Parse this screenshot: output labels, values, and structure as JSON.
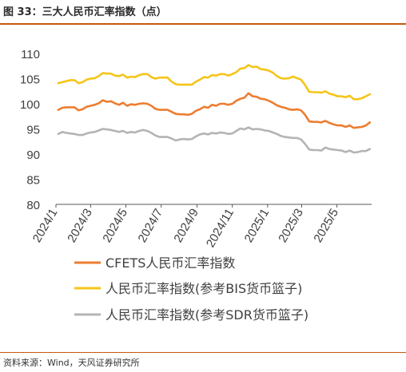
{
  "figure": {
    "title": "图 33：三大人民币汇率指数（点）",
    "source": "资料来源：Wind，天风证券研究所"
  },
  "chart_data": {
    "type": "line",
    "ylim": [
      80,
      110
    ],
    "yticks": [
      80,
      85,
      90,
      95,
      100,
      105,
      110
    ],
    "xlim": [
      "2024-01-01",
      "2025-06-30"
    ],
    "xticks": [
      {
        "date": "2024-01-01",
        "label": "2024/1"
      },
      {
        "date": "2024-03-01",
        "label": "2024/3"
      },
      {
        "date": "2024-05-01",
        "label": "2024/5"
      },
      {
        "date": "2024-07-01",
        "label": "2024/7"
      },
      {
        "date": "2024-09-01",
        "label": "2024/9"
      },
      {
        "date": "2024-11-01",
        "label": "2024/11"
      },
      {
        "date": "2025-01-01",
        "label": "2025/1"
      },
      {
        "date": "2025-03-01",
        "label": "2025/3"
      },
      {
        "date": "2025-05-01",
        "label": "2025/5"
      }
    ],
    "grid": false,
    "legend_position": "bottom",
    "series": [
      {
        "name": "CFETS人民币汇率指数",
        "color": "#ed7d31",
        "points": [
          [
            "2024-01-05",
            98.8
          ],
          [
            "2024-01-12",
            99.2
          ],
          [
            "2024-01-19",
            99.3
          ],
          [
            "2024-01-26",
            99.3
          ],
          [
            "2024-02-02",
            99.3
          ],
          [
            "2024-02-09",
            98.7
          ],
          [
            "2024-02-16",
            98.9
          ],
          [
            "2024-02-23",
            99.4
          ],
          [
            "2024-03-01",
            99.6
          ],
          [
            "2024-03-08",
            99.8
          ],
          [
            "2024-03-15",
            100.1
          ],
          [
            "2024-03-22",
            100.7
          ],
          [
            "2024-03-29",
            100.4
          ],
          [
            "2024-04-05",
            100.5
          ],
          [
            "2024-04-12",
            100.1
          ],
          [
            "2024-04-19",
            99.8
          ],
          [
            "2024-04-26",
            100.2
          ],
          [
            "2024-05-03",
            99.6
          ],
          [
            "2024-05-10",
            99.9
          ],
          [
            "2024-05-17",
            99.8
          ],
          [
            "2024-05-24",
            100.0
          ],
          [
            "2024-05-31",
            100.1
          ],
          [
            "2024-06-07",
            100.0
          ],
          [
            "2024-06-14",
            99.6
          ],
          [
            "2024-06-21",
            99.0
          ],
          [
            "2024-06-28",
            98.8
          ],
          [
            "2024-07-05",
            98.8
          ],
          [
            "2024-07-12",
            98.8
          ],
          [
            "2024-07-19",
            98.4
          ],
          [
            "2024-07-26",
            98.0
          ],
          [
            "2024-08-02",
            97.9
          ],
          [
            "2024-08-09",
            97.9
          ],
          [
            "2024-08-16",
            97.8
          ],
          [
            "2024-08-23",
            98.0
          ],
          [
            "2024-08-30",
            98.6
          ],
          [
            "2024-09-06",
            98.9
          ],
          [
            "2024-09-13",
            99.4
          ],
          [
            "2024-09-20",
            99.2
          ],
          [
            "2024-09-27",
            99.8
          ],
          [
            "2024-10-04",
            99.6
          ],
          [
            "2024-10-11",
            100.0
          ],
          [
            "2024-10-18",
            100.0
          ],
          [
            "2024-10-25",
            99.8
          ],
          [
            "2024-11-01",
            100.0
          ],
          [
            "2024-11-08",
            100.6
          ],
          [
            "2024-11-15",
            101.0
          ],
          [
            "2024-11-22",
            101.2
          ],
          [
            "2024-11-29",
            102.1
          ],
          [
            "2024-12-06",
            101.5
          ],
          [
            "2024-12-13",
            101.4
          ],
          [
            "2024-12-20",
            101.0
          ],
          [
            "2024-12-27",
            100.9
          ],
          [
            "2025-01-03",
            100.6
          ],
          [
            "2025-01-10",
            100.2
          ],
          [
            "2025-01-17",
            99.7
          ],
          [
            "2025-01-24",
            99.4
          ],
          [
            "2025-01-31",
            99.2
          ],
          [
            "2025-02-07",
            98.9
          ],
          [
            "2025-02-14",
            98.8
          ],
          [
            "2025-02-21",
            98.9
          ],
          [
            "2025-02-28",
            98.7
          ],
          [
            "2025-03-07",
            97.8
          ],
          [
            "2025-03-14",
            96.5
          ],
          [
            "2025-03-21",
            96.4
          ],
          [
            "2025-03-28",
            96.4
          ],
          [
            "2025-04-04",
            96.3
          ],
          [
            "2025-04-11",
            96.6
          ],
          [
            "2025-04-18",
            96.2
          ],
          [
            "2025-04-25",
            95.9
          ],
          [
            "2025-05-02",
            95.7
          ],
          [
            "2025-05-09",
            95.7
          ],
          [
            "2025-05-16",
            95.4
          ],
          [
            "2025-05-23",
            95.7
          ],
          [
            "2025-05-30",
            95.2
          ],
          [
            "2025-06-06",
            95.3
          ],
          [
            "2025-06-13",
            95.4
          ],
          [
            "2025-06-20",
            95.7
          ],
          [
            "2025-06-27",
            96.3
          ]
        ]
      },
      {
        "name": "人民币汇率指数(参考BIS货币篮子)",
        "color": "#f5c518",
        "points": [
          [
            "2024-01-05",
            104.1
          ],
          [
            "2024-01-12",
            104.3
          ],
          [
            "2024-01-19",
            104.5
          ],
          [
            "2024-01-26",
            104.7
          ],
          [
            "2024-02-02",
            104.7
          ],
          [
            "2024-02-09",
            104.1
          ],
          [
            "2024-02-16",
            104.3
          ],
          [
            "2024-02-23",
            104.8
          ],
          [
            "2024-03-01",
            105.0
          ],
          [
            "2024-03-08",
            105.1
          ],
          [
            "2024-03-15",
            105.5
          ],
          [
            "2024-03-22",
            106.1
          ],
          [
            "2024-03-29",
            106.0
          ],
          [
            "2024-04-05",
            106.0
          ],
          [
            "2024-04-12",
            105.6
          ],
          [
            "2024-04-19",
            105.5
          ],
          [
            "2024-04-26",
            105.8
          ],
          [
            "2024-05-03",
            105.2
          ],
          [
            "2024-05-10",
            105.4
          ],
          [
            "2024-05-17",
            105.3
          ],
          [
            "2024-05-24",
            105.7
          ],
          [
            "2024-05-31",
            105.9
          ],
          [
            "2024-06-07",
            105.9
          ],
          [
            "2024-06-14",
            105.3
          ],
          [
            "2024-06-21",
            105.0
          ],
          [
            "2024-06-28",
            105.2
          ],
          [
            "2024-07-05",
            105.2
          ],
          [
            "2024-07-12",
            105.2
          ],
          [
            "2024-07-19",
            104.4
          ],
          [
            "2024-07-26",
            103.9
          ],
          [
            "2024-08-02",
            103.8
          ],
          [
            "2024-08-09",
            103.8
          ],
          [
            "2024-08-16",
            103.8
          ],
          [
            "2024-08-23",
            103.8
          ],
          [
            "2024-08-30",
            104.4
          ],
          [
            "2024-09-06",
            104.8
          ],
          [
            "2024-09-13",
            105.3
          ],
          [
            "2024-09-20",
            105.2
          ],
          [
            "2024-09-27",
            105.7
          ],
          [
            "2024-10-04",
            105.6
          ],
          [
            "2024-10-11",
            105.9
          ],
          [
            "2024-10-18",
            105.9
          ],
          [
            "2024-10-25",
            105.6
          ],
          [
            "2024-11-01",
            105.9
          ],
          [
            "2024-11-08",
            106.3
          ],
          [
            "2024-11-15",
            107.0
          ],
          [
            "2024-11-22",
            107.1
          ],
          [
            "2024-11-29",
            107.7
          ],
          [
            "2024-12-06",
            107.3
          ],
          [
            "2024-12-13",
            107.4
          ],
          [
            "2024-12-20",
            106.9
          ],
          [
            "2024-12-27",
            106.8
          ],
          [
            "2025-01-03",
            106.6
          ],
          [
            "2025-01-10",
            106.2
          ],
          [
            "2025-01-17",
            105.5
          ],
          [
            "2025-01-24",
            105.1
          ],
          [
            "2025-01-31",
            105.0
          ],
          [
            "2025-02-07",
            105.1
          ],
          [
            "2025-02-14",
            105.4
          ],
          [
            "2025-02-21",
            105.1
          ],
          [
            "2025-02-28",
            104.8
          ],
          [
            "2025-03-07",
            103.7
          ],
          [
            "2025-03-14",
            102.4
          ],
          [
            "2025-03-21",
            102.3
          ],
          [
            "2025-03-28",
            102.3
          ],
          [
            "2025-04-04",
            102.2
          ],
          [
            "2025-04-11",
            102.5
          ],
          [
            "2025-04-18",
            102.0
          ],
          [
            "2025-04-25",
            101.8
          ],
          [
            "2025-05-02",
            101.5
          ],
          [
            "2025-05-09",
            101.5
          ],
          [
            "2025-05-16",
            101.3
          ],
          [
            "2025-05-23",
            101.6
          ],
          [
            "2025-05-30",
            100.9
          ],
          [
            "2025-06-06",
            100.9
          ],
          [
            "2025-06-13",
            101.1
          ],
          [
            "2025-06-20",
            101.5
          ],
          [
            "2025-06-27",
            101.9
          ]
        ]
      },
      {
        "name": "人民币汇率指数(参考SDR货币篮子)",
        "color": "#b4b4b4",
        "points": [
          [
            "2024-01-05",
            94.0
          ],
          [
            "2024-01-12",
            94.4
          ],
          [
            "2024-01-19",
            94.2
          ],
          [
            "2024-01-26",
            94.1
          ],
          [
            "2024-02-02",
            94.0
          ],
          [
            "2024-02-09",
            93.8
          ],
          [
            "2024-02-16",
            93.8
          ],
          [
            "2024-02-23",
            94.1
          ],
          [
            "2024-03-01",
            94.3
          ],
          [
            "2024-03-08",
            94.4
          ],
          [
            "2024-03-15",
            94.7
          ],
          [
            "2024-03-22",
            95.0
          ],
          [
            "2024-03-29",
            94.9
          ],
          [
            "2024-04-05",
            94.8
          ],
          [
            "2024-04-12",
            94.6
          ],
          [
            "2024-04-19",
            94.4
          ],
          [
            "2024-04-26",
            94.6
          ],
          [
            "2024-05-03",
            94.2
          ],
          [
            "2024-05-10",
            94.4
          ],
          [
            "2024-05-17",
            94.3
          ],
          [
            "2024-05-24",
            94.6
          ],
          [
            "2024-05-31",
            94.8
          ],
          [
            "2024-06-07",
            94.6
          ],
          [
            "2024-06-14",
            94.2
          ],
          [
            "2024-06-21",
            93.7
          ],
          [
            "2024-06-28",
            93.4
          ],
          [
            "2024-07-05",
            93.4
          ],
          [
            "2024-07-12",
            93.4
          ],
          [
            "2024-07-19",
            93.1
          ],
          [
            "2024-07-26",
            92.7
          ],
          [
            "2024-08-02",
            92.9
          ],
          [
            "2024-08-09",
            93.0
          ],
          [
            "2024-08-16",
            92.9
          ],
          [
            "2024-08-23",
            93.0
          ],
          [
            "2024-08-30",
            93.5
          ],
          [
            "2024-09-06",
            93.9
          ],
          [
            "2024-09-13",
            94.1
          ],
          [
            "2024-09-20",
            93.9
          ],
          [
            "2024-09-27",
            94.2
          ],
          [
            "2024-10-04",
            94.1
          ],
          [
            "2024-10-11",
            94.3
          ],
          [
            "2024-10-18",
            94.2
          ],
          [
            "2024-10-25",
            94.0
          ],
          [
            "2024-11-01",
            94.1
          ],
          [
            "2024-11-08",
            94.6
          ],
          [
            "2024-11-15",
            95.1
          ],
          [
            "2024-11-22",
            94.9
          ],
          [
            "2024-11-29",
            95.3
          ],
          [
            "2024-12-06",
            94.9
          ],
          [
            "2024-12-13",
            95.0
          ],
          [
            "2024-12-20",
            94.9
          ],
          [
            "2024-12-27",
            94.7
          ],
          [
            "2025-01-03",
            94.6
          ],
          [
            "2025-01-10",
            94.3
          ],
          [
            "2025-01-17",
            94.0
          ],
          [
            "2025-01-24",
            93.6
          ],
          [
            "2025-01-31",
            93.4
          ],
          [
            "2025-02-07",
            93.3
          ],
          [
            "2025-02-14",
            93.2
          ],
          [
            "2025-02-21",
            93.2
          ],
          [
            "2025-02-28",
            92.9
          ],
          [
            "2025-03-07",
            92.0
          ],
          [
            "2025-03-14",
            90.9
          ],
          [
            "2025-03-21",
            90.8
          ],
          [
            "2025-03-28",
            90.8
          ],
          [
            "2025-04-04",
            90.7
          ],
          [
            "2025-04-11",
            91.3
          ],
          [
            "2025-04-18",
            91.0
          ],
          [
            "2025-04-25",
            90.9
          ],
          [
            "2025-05-02",
            90.8
          ],
          [
            "2025-05-09",
            90.7
          ],
          [
            "2025-05-16",
            90.4
          ],
          [
            "2025-05-23",
            90.7
          ],
          [
            "2025-05-30",
            90.3
          ],
          [
            "2025-06-06",
            90.4
          ],
          [
            "2025-06-13",
            90.6
          ],
          [
            "2025-06-20",
            90.6
          ],
          [
            "2025-06-27",
            91.0
          ]
        ]
      }
    ]
  }
}
